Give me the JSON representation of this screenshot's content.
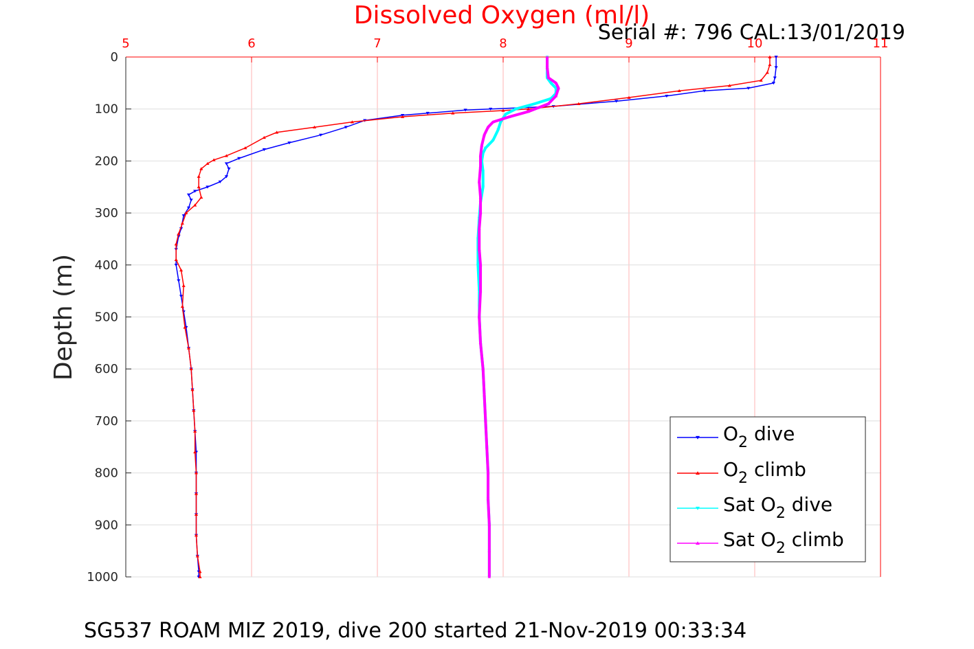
{
  "chart_data": {
    "type": "scatter",
    "title": "Dissolved Oxygen (ml/l)",
    "subtitle": "Serial #: 796  CAL:13/01/2019",
    "footer": "SG537 ROAM MIZ 2019, dive 200 started 21-Nov-2019 00:33:34",
    "xlabel": "",
    "ylabel": "Depth (m)",
    "xlim": [
      5,
      11
    ],
    "ylim": [
      0,
      1000
    ],
    "y_reversed": true,
    "x_axis_location": "top",
    "grid": true,
    "x_ticks": [
      "5",
      "6",
      "7",
      "8",
      "9",
      "10",
      "11"
    ],
    "y_ticks": [
      "0",
      "100",
      "200",
      "300",
      "400",
      "500",
      "600",
      "700",
      "800",
      "900",
      "1000"
    ],
    "legend": {
      "placement": "bottom-right",
      "entries": [
        {
          "base": "O",
          "sub": "2",
          "suffix": " dive"
        },
        {
          "base": "O",
          "sub": "2",
          "suffix": " climb"
        },
        {
          "base": "Sat O",
          "sub": "2",
          "suffix": " dive"
        },
        {
          "base": "Sat O",
          "sub": "2",
          "suffix": " climb"
        }
      ]
    },
    "colors": {
      "title": "#ff0000",
      "top_ticks": "#ff0000",
      "o2_dive": "#0000ff",
      "o2_climb": "#ff0000",
      "sat_dive": "#00ffff",
      "sat_climb": "#ff00ff"
    },
    "series": [
      {
        "name": "O2 dive",
        "marker": "triangle-down",
        "points": [
          [
            10.17,
            0
          ],
          [
            10.17,
            20
          ],
          [
            10.16,
            40
          ],
          [
            10.15,
            50
          ],
          [
            9.95,
            60
          ],
          [
            9.6,
            65
          ],
          [
            9.3,
            75
          ],
          [
            8.9,
            85
          ],
          [
            8.4,
            95
          ],
          [
            7.9,
            100
          ],
          [
            7.7,
            102
          ],
          [
            7.4,
            108
          ],
          [
            7.2,
            112
          ],
          [
            6.9,
            122
          ],
          [
            6.75,
            135
          ],
          [
            6.55,
            150
          ],
          [
            6.3,
            165
          ],
          [
            6.1,
            178
          ],
          [
            5.9,
            195
          ],
          [
            5.8,
            205
          ],
          [
            5.82,
            215
          ],
          [
            5.8,
            230
          ],
          [
            5.75,
            240
          ],
          [
            5.65,
            250
          ],
          [
            5.55,
            258
          ],
          [
            5.5,
            265
          ],
          [
            5.52,
            275
          ],
          [
            5.5,
            290
          ],
          [
            5.46,
            305
          ],
          [
            5.44,
            330
          ],
          [
            5.42,
            345
          ],
          [
            5.4,
            370
          ],
          [
            5.4,
            400
          ],
          [
            5.42,
            430
          ],
          [
            5.44,
            460
          ],
          [
            5.46,
            490
          ],
          [
            5.48,
            520
          ],
          [
            5.5,
            560
          ],
          [
            5.52,
            600
          ],
          [
            5.53,
            640
          ],
          [
            5.54,
            680
          ],
          [
            5.55,
            720
          ],
          [
            5.56,
            760
          ],
          [
            5.56,
            800
          ],
          [
            5.56,
            840
          ],
          [
            5.56,
            880
          ],
          [
            5.56,
            920
          ],
          [
            5.57,
            960
          ],
          [
            5.58,
            990
          ],
          [
            5.58,
            1000
          ]
        ]
      },
      {
        "name": "O2 climb",
        "marker": "triangle-up",
        "points": [
          [
            10.12,
            0
          ],
          [
            10.12,
            15
          ],
          [
            10.1,
            30
          ],
          [
            10.05,
            45
          ],
          [
            9.8,
            55
          ],
          [
            9.4,
            65
          ],
          [
            9.0,
            78
          ],
          [
            8.6,
            90
          ],
          [
            8.2,
            100
          ],
          [
            8.0,
            103
          ],
          [
            7.6,
            108
          ],
          [
            7.2,
            115
          ],
          [
            6.8,
            125
          ],
          [
            6.5,
            135
          ],
          [
            6.2,
            145
          ],
          [
            6.1,
            155
          ],
          [
            5.95,
            175
          ],
          [
            5.8,
            190
          ],
          [
            5.7,
            198
          ],
          [
            5.65,
            205
          ],
          [
            5.6,
            215
          ],
          [
            5.58,
            230
          ],
          [
            5.58,
            250
          ],
          [
            5.6,
            270
          ],
          [
            5.55,
            285
          ],
          [
            5.48,
            300
          ],
          [
            5.45,
            320
          ],
          [
            5.42,
            340
          ],
          [
            5.4,
            360
          ],
          [
            5.4,
            390
          ],
          [
            5.44,
            410
          ],
          [
            5.46,
            440
          ],
          [
            5.45,
            480
          ],
          [
            5.47,
            520
          ],
          [
            5.5,
            560
          ],
          [
            5.52,
            600
          ],
          [
            5.53,
            640
          ],
          [
            5.54,
            680
          ],
          [
            5.55,
            720
          ],
          [
            5.55,
            760
          ],
          [
            5.56,
            800
          ],
          [
            5.56,
            840
          ],
          [
            5.56,
            880
          ],
          [
            5.56,
            920
          ],
          [
            5.57,
            960
          ],
          [
            5.59,
            990
          ],
          [
            5.59,
            1000
          ]
        ]
      },
      {
        "name": "Sat O2 dive",
        "marker": "triangle-down",
        "points": [
          [
            8.35,
            0
          ],
          [
            8.35,
            20
          ],
          [
            8.35,
            40
          ],
          [
            8.38,
            50
          ],
          [
            8.42,
            60
          ],
          [
            8.42,
            70
          ],
          [
            8.38,
            80
          ],
          [
            8.25,
            90
          ],
          [
            8.1,
            100
          ],
          [
            8.02,
            110
          ],
          [
            7.98,
            125
          ],
          [
            7.96,
            140
          ],
          [
            7.92,
            160
          ],
          [
            7.86,
            175
          ],
          [
            7.84,
            185
          ],
          [
            7.83,
            200
          ],
          [
            7.84,
            220
          ],
          [
            7.84,
            250
          ],
          [
            7.82,
            280
          ],
          [
            7.81,
            310
          ],
          [
            7.8,
            350
          ],
          [
            7.8,
            400
          ],
          [
            7.81,
            450
          ],
          [
            7.81,
            500
          ],
          [
            7.82,
            550
          ],
          [
            7.84,
            600
          ],
          [
            7.85,
            650
          ],
          [
            7.86,
            700
          ],
          [
            7.87,
            750
          ],
          [
            7.88,
            800
          ],
          [
            7.88,
            850
          ],
          [
            7.89,
            900
          ],
          [
            7.89,
            950
          ],
          [
            7.89,
            1000
          ]
        ]
      },
      {
        "name": "Sat O2 climb",
        "marker": "triangle-up",
        "points": [
          [
            8.35,
            0
          ],
          [
            8.35,
            20
          ],
          [
            8.36,
            40
          ],
          [
            8.42,
            50
          ],
          [
            8.44,
            60
          ],
          [
            8.42,
            75
          ],
          [
            8.36,
            90
          ],
          [
            8.2,
            105
          ],
          [
            8.05,
            115
          ],
          [
            7.92,
            125
          ],
          [
            7.88,
            135
          ],
          [
            7.85,
            150
          ],
          [
            7.83,
            170
          ],
          [
            7.82,
            190
          ],
          [
            7.82,
            210
          ],
          [
            7.81,
            240
          ],
          [
            7.82,
            270
          ],
          [
            7.82,
            300
          ],
          [
            7.81,
            330
          ],
          [
            7.81,
            370
          ],
          [
            7.82,
            400
          ],
          [
            7.82,
            450
          ],
          [
            7.81,
            500
          ],
          [
            7.82,
            550
          ],
          [
            7.84,
            600
          ],
          [
            7.85,
            650
          ],
          [
            7.86,
            700
          ],
          [
            7.87,
            750
          ],
          [
            7.88,
            800
          ],
          [
            7.88,
            850
          ],
          [
            7.89,
            900
          ],
          [
            7.89,
            950
          ],
          [
            7.89,
            1000
          ]
        ]
      }
    ]
  }
}
